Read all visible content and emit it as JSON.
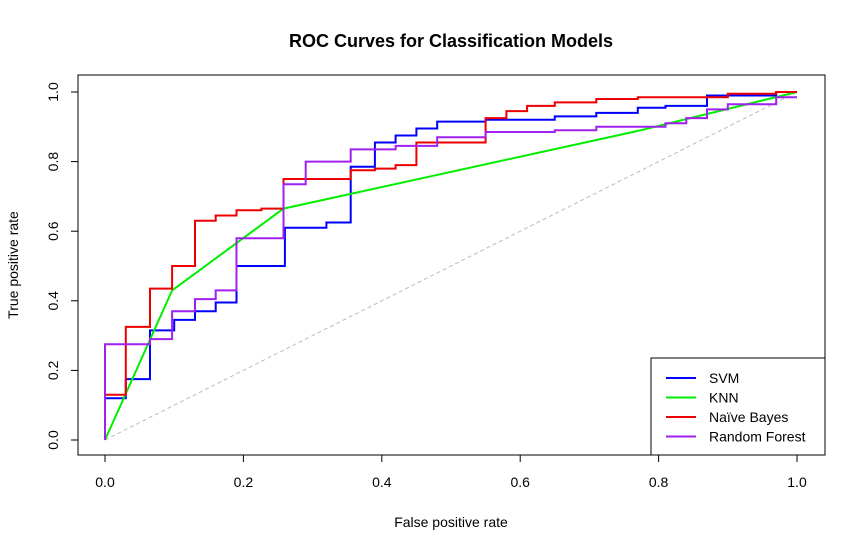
{
  "chart_data": {
    "type": "line",
    "title": "ROC Curves for Classification Models",
    "xlabel": "False positive rate",
    "ylabel": "True positive rate",
    "xlim": [
      0,
      1
    ],
    "ylim": [
      0,
      1
    ],
    "xticks": [
      "0.0",
      "0.2",
      "0.4",
      "0.6",
      "0.8",
      "1.0"
    ],
    "yticks": [
      "0.0",
      "0.2",
      "0.4",
      "0.6",
      "0.8",
      "1.0"
    ],
    "grid": false,
    "legend_position": "bottom-right",
    "reference_line": {
      "x": [
        0,
        1
      ],
      "y": [
        0,
        1
      ],
      "color": "#bbbbbb",
      "style": "dashed"
    },
    "series": [
      {
        "name": "SVM",
        "color": "#0000ff",
        "step": true,
        "x": [
          0,
          0,
          0.03,
          0.03,
          0.065,
          0.065,
          0.1,
          0.1,
          0.13,
          0.13,
          0.16,
          0.16,
          0.19,
          0.19,
          0.26,
          0.26,
          0.32,
          0.32,
          0.355,
          0.355,
          0.39,
          0.39,
          0.42,
          0.42,
          0.45,
          0.45,
          0.48,
          0.48,
          0.55,
          0.55,
          0.65,
          0.65,
          0.71,
          0.71,
          0.77,
          0.77,
          0.81,
          0.81,
          0.87,
          0.87,
          0.97,
          0.97,
          1
        ],
        "y": [
          0,
          0.12,
          0.12,
          0.175,
          0.175,
          0.315,
          0.315,
          0.345,
          0.345,
          0.37,
          0.37,
          0.395,
          0.395,
          0.5,
          0.5,
          0.61,
          0.61,
          0.625,
          0.625,
          0.785,
          0.785,
          0.855,
          0.855,
          0.875,
          0.875,
          0.895,
          0.895,
          0.915,
          0.915,
          0.92,
          0.92,
          0.93,
          0.93,
          0.94,
          0.94,
          0.955,
          0.955,
          0.96,
          0.96,
          0.99,
          0.99,
          1,
          1
        ]
      },
      {
        "name": "KNN",
        "color": "#00ee00",
        "step": false,
        "x": [
          0,
          0.097,
          0.258,
          0.774,
          1
        ],
        "y": [
          0,
          0.43,
          0.665,
          0.89,
          1
        ]
      },
      {
        "name": "Naïve Bayes",
        "color": "#ee0000",
        "step": true,
        "x": [
          0,
          0,
          0.03,
          0.03,
          0.065,
          0.065,
          0.097,
          0.097,
          0.13,
          0.13,
          0.16,
          0.16,
          0.19,
          0.19,
          0.226,
          0.226,
          0.258,
          0.258,
          0.355,
          0.355,
          0.39,
          0.39,
          0.42,
          0.42,
          0.45,
          0.45,
          0.55,
          0.55,
          0.58,
          0.58,
          0.61,
          0.61,
          0.65,
          0.65,
          0.71,
          0.71,
          0.77,
          0.77,
          0.9,
          0.9,
          0.97,
          0.97,
          1
        ],
        "y": [
          0,
          0.13,
          0.13,
          0.325,
          0.325,
          0.435,
          0.435,
          0.5,
          0.5,
          0.63,
          0.63,
          0.645,
          0.645,
          0.66,
          0.66,
          0.665,
          0.665,
          0.75,
          0.75,
          0.775,
          0.775,
          0.78,
          0.78,
          0.79,
          0.79,
          0.855,
          0.855,
          0.925,
          0.925,
          0.945,
          0.945,
          0.96,
          0.96,
          0.97,
          0.97,
          0.98,
          0.98,
          0.985,
          0.985,
          0.995,
          0.995,
          1,
          1
        ]
      },
      {
        "name": "Random Forest",
        "color": "#a020f0",
        "step": true,
        "x": [
          0,
          0,
          0.065,
          0.065,
          0.097,
          0.097,
          0.13,
          0.13,
          0.16,
          0.16,
          0.19,
          0.19,
          0.258,
          0.258,
          0.29,
          0.29,
          0.355,
          0.355,
          0.42,
          0.42,
          0.48,
          0.48,
          0.55,
          0.55,
          0.65,
          0.65,
          0.71,
          0.71,
          0.81,
          0.81,
          0.84,
          0.84,
          0.87,
          0.87,
          0.9,
          0.9,
          0.97,
          0.97,
          1
        ],
        "y": [
          0,
          0.275,
          0.275,
          0.29,
          0.29,
          0.37,
          0.37,
          0.405,
          0.405,
          0.43,
          0.43,
          0.58,
          0.58,
          0.735,
          0.735,
          0.8,
          0.8,
          0.835,
          0.835,
          0.845,
          0.845,
          0.87,
          0.87,
          0.885,
          0.885,
          0.89,
          0.89,
          0.9,
          0.9,
          0.91,
          0.91,
          0.925,
          0.925,
          0.95,
          0.95,
          0.965,
          0.965,
          0.985,
          0.985
        ]
      }
    ]
  }
}
